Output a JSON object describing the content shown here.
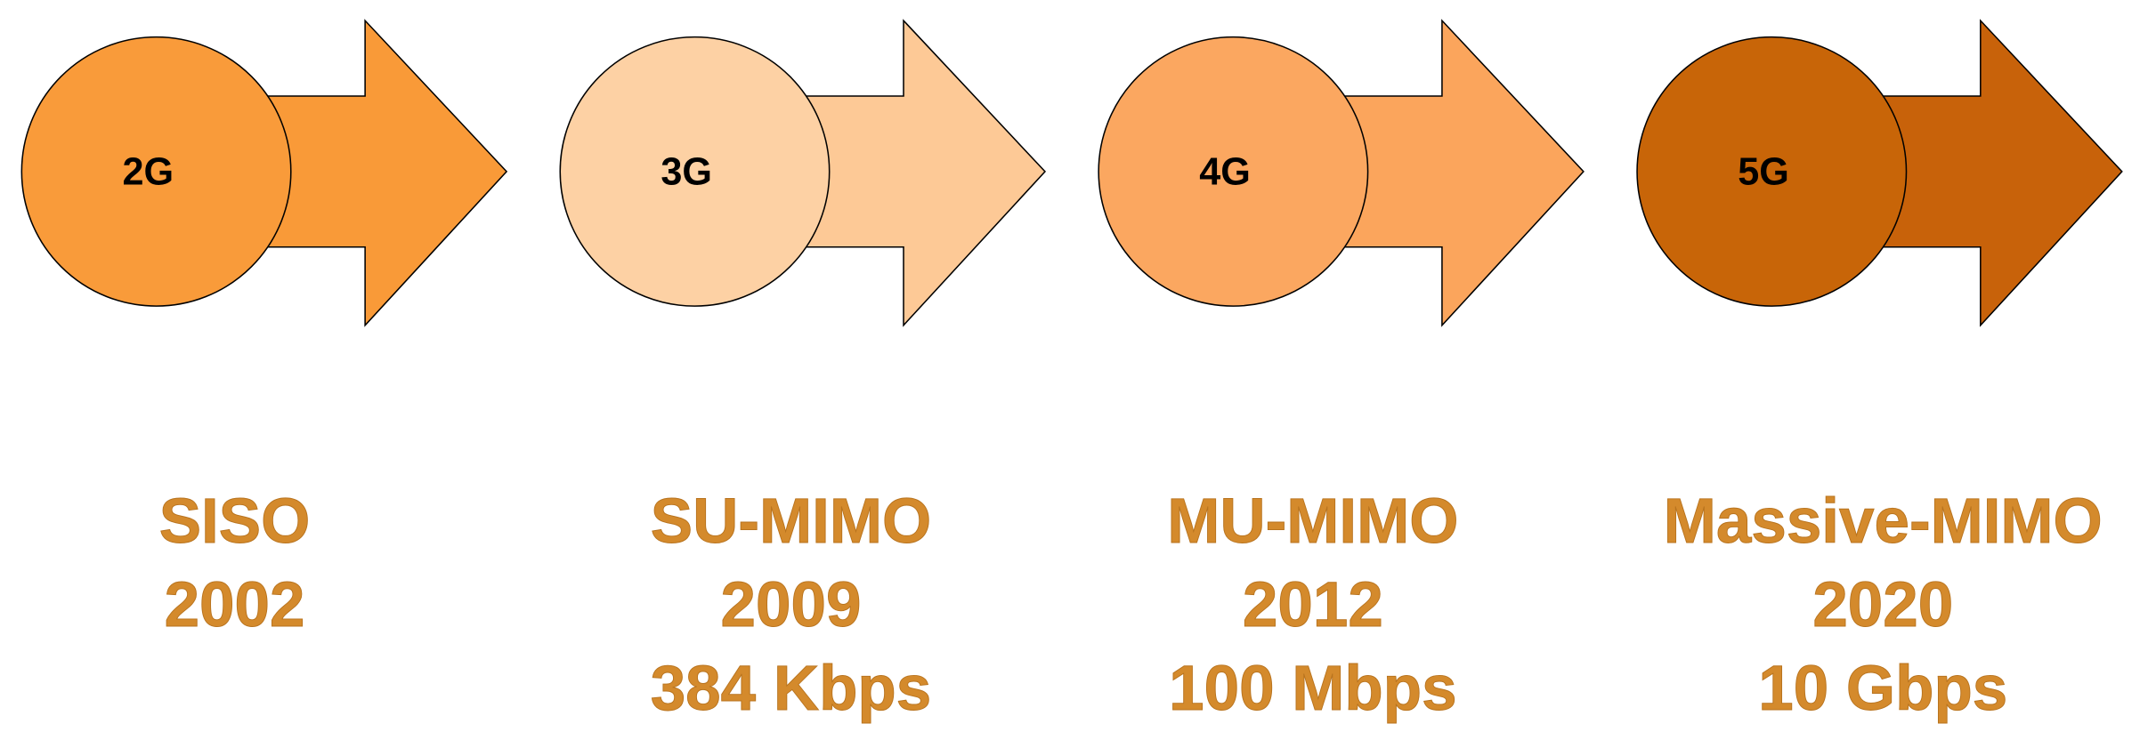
{
  "stages": [
    {
      "generation": "2G",
      "technique": "SISO",
      "year": "2002"
    },
    {
      "generation": "3G",
      "technique": "SU-MIMO",
      "year": "2009",
      "rate": "384 Kbps"
    },
    {
      "generation": "4G",
      "technique": "MU-MIMO",
      "year": "2012",
      "rate": "100 Mbps"
    },
    {
      "generation": "5G",
      "technique": "Massive-MIMO",
      "year": "2020",
      "rate": "10 Gbps"
    }
  ]
}
